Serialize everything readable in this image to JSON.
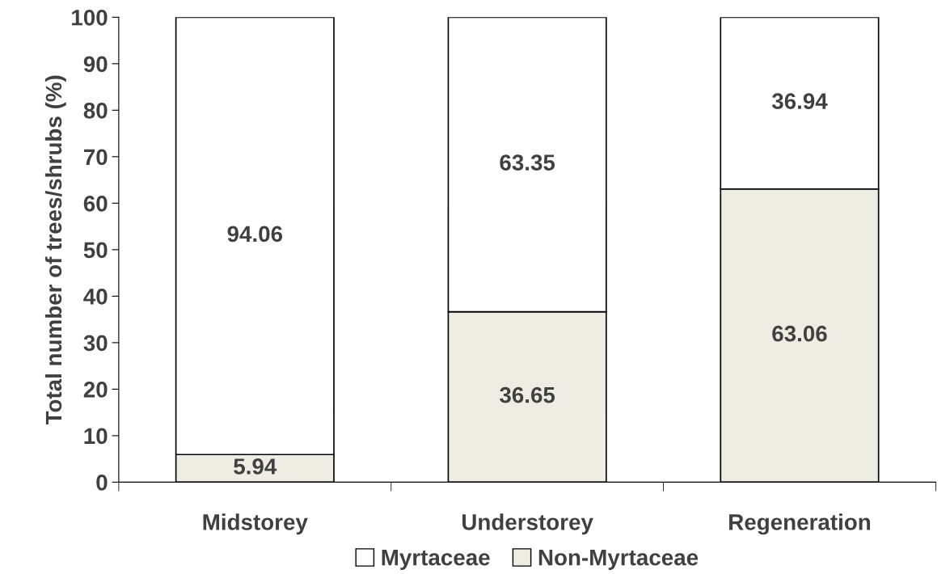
{
  "chart_data": {
    "type": "bar",
    "stacked": true,
    "ylabel": "Total number of trees/shrubs (%)",
    "categories": [
      "Midstorey",
      "Understorey",
      "Regeneration"
    ],
    "series": [
      {
        "name": "Non-Myrtaceae",
        "color": "#eeede4",
        "values": [
          5.94,
          36.65,
          63.06
        ]
      },
      {
        "name": "Myrtaceae",
        "color": "#ffffff",
        "values": [
          94.06,
          63.35,
          36.94
        ]
      }
    ],
    "ylim": [
      0,
      100
    ],
    "yticks": [
      0,
      10,
      20,
      30,
      40,
      50,
      60,
      70,
      80,
      90,
      100
    ],
    "data_labels": true,
    "grid": false,
    "legend": "bottom"
  }
}
